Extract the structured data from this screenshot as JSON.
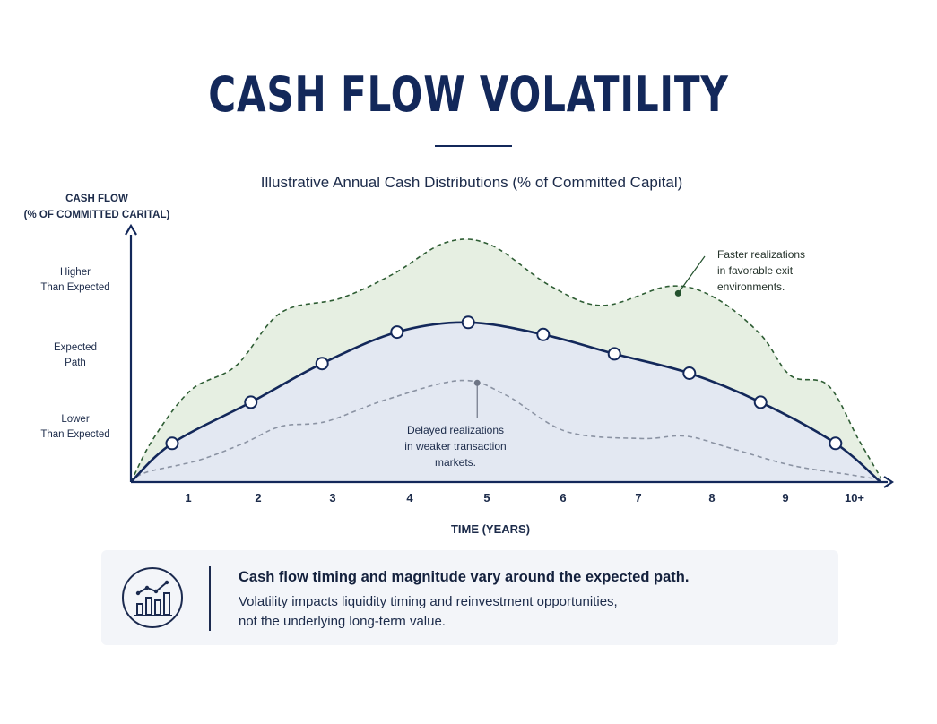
{
  "header": {
    "title": "CASH FLOW VOLATILITY"
  },
  "chart_data": {
    "type": "line",
    "title": "Illustrative Annual Cash Distributions (% of Committed Capital)",
    "ylabel": [
      "CASH FLOW",
      "(% OF COMMITTED CARITAL)"
    ],
    "xlabel": "TIME (YEARS)",
    "categories": [
      "1",
      "2",
      "3",
      "4",
      "5",
      "6",
      "7",
      "8",
      "9",
      "10+"
    ],
    "y_levels": [
      {
        "label": [
          "Higher",
          "Than Expected"
        ],
        "value": 8
      },
      {
        "label": [
          "Expected",
          "Path"
        ],
        "value": 5.4
      },
      {
        "label": [
          "Lower",
          "Than Expected"
        ],
        "value": 2.6
      }
    ],
    "ylim": [
      0,
      10
    ],
    "series": [
      {
        "role": "expected",
        "style": "solid",
        "color": "#13285a",
        "points": [
          {
            "x": 0.55,
            "y": 1.6
          },
          {
            "x": 1.6,
            "y": 3.3
          },
          {
            "x": 2.55,
            "y": 4.9
          },
          {
            "x": 3.55,
            "y": 6.2
          },
          {
            "x": 4.5,
            "y": 6.6
          },
          {
            "x": 5.5,
            "y": 6.1
          },
          {
            "x": 6.45,
            "y": 5.3
          },
          {
            "x": 7.45,
            "y": 4.5
          },
          {
            "x": 8.4,
            "y": 3.3
          },
          {
            "x": 9.4,
            "y": 1.6
          }
        ],
        "markers": true
      },
      {
        "role": "upper",
        "style": "dashed",
        "color": "#2e5d34",
        "points": [
          {
            "x": 0.3,
            "y": 1.8
          },
          {
            "x": 0.8,
            "y": 3.8
          },
          {
            "x": 1.4,
            "y": 4.8
          },
          {
            "x": 2.0,
            "y": 7.0
          },
          {
            "x": 2.8,
            "y": 7.6
          },
          {
            "x": 3.5,
            "y": 8.6
          },
          {
            "x": 4.2,
            "y": 9.9
          },
          {
            "x": 4.8,
            "y": 9.8
          },
          {
            "x": 5.6,
            "y": 8.1
          },
          {
            "x": 6.3,
            "y": 7.3
          },
          {
            "x": 7.2,
            "y": 8.1
          },
          {
            "x": 7.8,
            "y": 7.6
          },
          {
            "x": 8.4,
            "y": 6.1
          },
          {
            "x": 8.8,
            "y": 4.4
          },
          {
            "x": 9.3,
            "y": 4.0
          },
          {
            "x": 9.7,
            "y": 1.8
          },
          {
            "x": 10.0,
            "y": 0.2
          }
        ]
      },
      {
        "role": "lower",
        "style": "dashed",
        "color": "#8b93a3",
        "points": [
          {
            "x": 0.2,
            "y": 0.4
          },
          {
            "x": 0.9,
            "y": 0.9
          },
          {
            "x": 1.5,
            "y": 1.6
          },
          {
            "x": 2.0,
            "y": 2.3
          },
          {
            "x": 2.6,
            "y": 2.5
          },
          {
            "x": 3.4,
            "y": 3.4
          },
          {
            "x": 4.4,
            "y": 4.2
          },
          {
            "x": 5.0,
            "y": 3.6
          },
          {
            "x": 5.8,
            "y": 2.1
          },
          {
            "x": 6.8,
            "y": 1.8
          },
          {
            "x": 7.4,
            "y": 1.9
          },
          {
            "x": 8.0,
            "y": 1.4
          },
          {
            "x": 8.8,
            "y": 0.7
          },
          {
            "x": 9.6,
            "y": 0.3
          },
          {
            "x": 10.0,
            "y": 0.1
          }
        ]
      }
    ],
    "annotations": [
      {
        "text": [
          "Faster realizations",
          "in favorable exit",
          "environments."
        ],
        "x": 7.3,
        "y": 7.8,
        "color": "#24522e"
      },
      {
        "text": [
          "Delayed realizations",
          "in weaker transaction",
          "markets."
        ],
        "x": 4.62,
        "y": 4.1,
        "color": "#6e7585"
      }
    ],
    "colors": {
      "axis": "#13285a",
      "upper_band": "#e6efe2",
      "lower_band": "#e3e8f2"
    }
  },
  "summary_panel": {
    "icon": "growth-chart-icon",
    "heading": "Cash flow timing and magnitude vary around the expected path.",
    "body": [
      "Volatility impacts liquidity timing and reinvestment opportunities,",
      "not the underlying long-term value."
    ]
  }
}
